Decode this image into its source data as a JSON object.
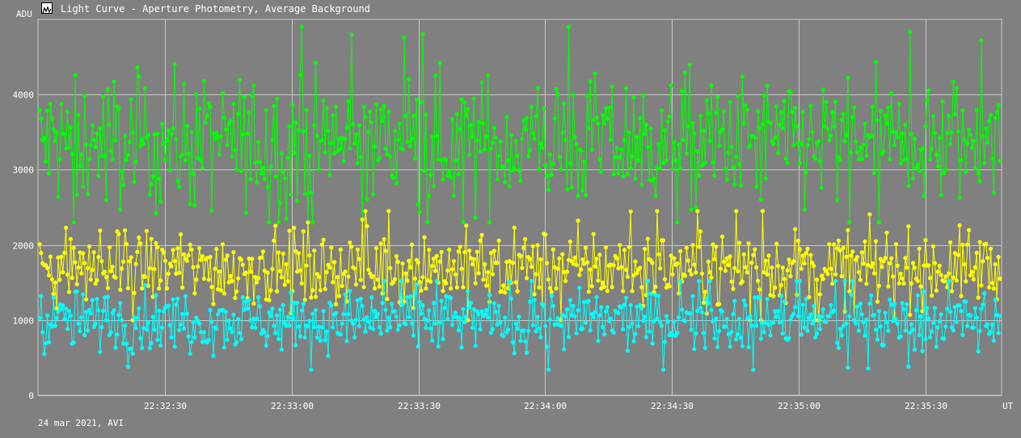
{
  "window": {
    "title": "Light Curve - Aperture Photometry, Average Background",
    "icon": "light-curve-app-icon"
  },
  "footer": {
    "date_label": "24 mar 2021, AVI"
  },
  "chart_data": {
    "type": "line",
    "title": "Light Curve - Aperture Photometry, Average Background",
    "ylabel": "ADU",
    "xlabel": "UT",
    "ylim": [
      0,
      5000
    ],
    "y_ticks": [
      0,
      1000,
      2000,
      3000,
      4000
    ],
    "x_ticks": [
      "22:32:30",
      "22:33:00",
      "22:33:30",
      "22:34:00",
      "22:34:30",
      "22:35:00",
      "22:35:30"
    ],
    "x_range": [
      "22:32:00",
      "22:35:48"
    ],
    "grid": true,
    "series": [
      {
        "color": "#00ff00",
        "mean": 3350,
        "low": 2300,
        "high": 4900
      },
      {
        "color": "#ffff00",
        "mean": 1700,
        "low": 1000,
        "high": 2450
      },
      {
        "color": "#00ffff",
        "mean": 990,
        "low": 340,
        "high": 1520
      }
    ]
  }
}
